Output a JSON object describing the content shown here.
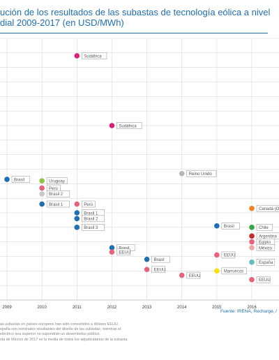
{
  "title": {
    "line1": "ución de los resultados de las subastas de tecnología eólica a nivel",
    "line2": "dial 2009-2017 (en USD/MWh)"
  },
  "notes": [
    "as subastas en países europeos han sido convertidos a dólares EEUU.",
    "spaña son nominales resultantes del diseño de las subastas, mientras el",
    "eléctrico sea superior no supondrán un desembolso público.",
    "sta de México de 2017 es la media de todos los adjudicatarios de la subasta."
  ],
  "source": "Fuente: IRENA, Recharge, /",
  "chart_data": {
    "type": "scatter",
    "x_ticks": [
      "2009",
      "2010",
      "2011",
      "2012",
      "2013",
      "2014",
      "2015",
      "2016"
    ],
    "xlim": [
      2008.2,
      2016.8
    ],
    "ylim": [
      0,
      18
    ],
    "grid": true,
    "colors": {
      "blue": "#1f6fb2",
      "magenta": "#d6207a",
      "pink": "#e8637a",
      "green": "#8ec641",
      "gray": "#b5b5b5",
      "orange": "#f07e26",
      "darkgreen": "#3aa548",
      "red": "#c42a2a",
      "lightpink": "#f0a6a6",
      "yellow": "#f5e20d",
      "teal": "#62bfb5",
      "lightgray": "#c8c8c8"
    },
    "points": [
      {
        "year": 2009.0,
        "value": 8.3,
        "color": "blue",
        "label": "Brasil"
      },
      {
        "year": 2010.0,
        "value": 8.2,
        "color": "green",
        "label": "Uruguay"
      },
      {
        "year": 2010.0,
        "value": 7.7,
        "color": "pink",
        "label": "Perú"
      },
      {
        "year": 2010.0,
        "value": 7.3,
        "color": "lightgray",
        "label": "Brasil 2"
      },
      {
        "year": 2010.0,
        "value": 6.6,
        "color": "blue",
        "label": "Brasil 1"
      },
      {
        "year": 2011.0,
        "value": 16.8,
        "color": "magenta",
        "label": "Sudáfrica"
      },
      {
        "year": 2011.0,
        "value": 6.6,
        "color": "pink",
        "label": "Perú"
      },
      {
        "year": 2011.0,
        "value": 6.0,
        "color": "blue",
        "label": "Brasil 1"
      },
      {
        "year": 2011.0,
        "value": 5.6,
        "color": "blue",
        "label": "Brasil 2"
      },
      {
        "year": 2011.0,
        "value": 5.0,
        "color": "blue",
        "label": "Brasil 3"
      },
      {
        "year": 2012.0,
        "value": 12.0,
        "color": "magenta",
        "label": "Sudáfrica"
      },
      {
        "year": 2012.0,
        "value": 3.6,
        "color": "blue",
        "label": "Brasil"
      },
      {
        "year": 2012.0,
        "value": 3.3,
        "color": "pink",
        "label": "EEUU"
      },
      {
        "year": 2013.0,
        "value": 2.8,
        "color": "blue",
        "label": "Brasil"
      },
      {
        "year": 2013.0,
        "value": 2.1,
        "color": "pink",
        "label": "EEUU"
      },
      {
        "year": 2014.0,
        "value": 8.7,
        "color": "gray",
        "label": "Reino Unido"
      },
      {
        "year": 2014.0,
        "value": 1.7,
        "color": "pink",
        "label": "EEUU"
      },
      {
        "year": 2015.0,
        "value": 5.1,
        "color": "blue",
        "label": "Brasil"
      },
      {
        "year": 2015.0,
        "value": 3.1,
        "color": "pink",
        "label": "EEUU"
      },
      {
        "year": 2015.0,
        "value": 2.0,
        "color": "yellow",
        "label": "Marruecos"
      },
      {
        "year": 2016.0,
        "value": 6.3,
        "color": "orange",
        "label": "Canadá (Ont"
      },
      {
        "year": 2016.0,
        "value": 5.0,
        "color": "darkgreen",
        "label": "Chile"
      },
      {
        "year": 2016.0,
        "value": 4.4,
        "color": "red",
        "label": "Argentina"
      },
      {
        "year": 2016.0,
        "value": 4.0,
        "color": "pink",
        "label": "Egipto"
      },
      {
        "year": 2016.0,
        "value": 3.6,
        "color": "lightpink",
        "label": "México"
      },
      {
        "year": 2016.0,
        "value": 2.6,
        "color": "teal",
        "label": "España"
      },
      {
        "year": 2016.0,
        "value": 1.4,
        "color": "pink",
        "label": "EEUU"
      }
    ]
  }
}
